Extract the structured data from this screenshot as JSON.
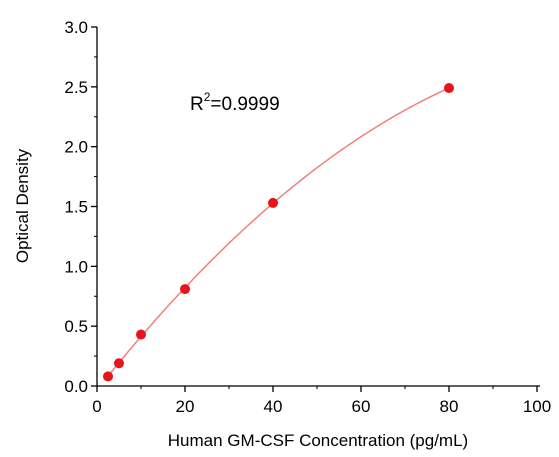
{
  "chart_data": {
    "type": "scatter",
    "xlabel": "Human GM-CSF Concentration (pg/mL)",
    "ylabel": "Optical Density",
    "xlim": [
      0,
      100
    ],
    "ylim": [
      0,
      3.0
    ],
    "x_ticks": [
      "0",
      "20",
      "40",
      "60",
      "80",
      "100"
    ],
    "y_ticks": [
      "0.0",
      "0.5",
      "1.0",
      "1.5",
      "2.0",
      "2.5",
      "3.0"
    ],
    "grid": false,
    "series": [
      {
        "x": [
          2.5,
          5,
          10,
          20,
          40,
          80
        ],
        "y": [
          0.08,
          0.19,
          0.43,
          0.81,
          1.53,
          2.49
        ],
        "marker_color": "#e8141c"
      }
    ],
    "fit_curve": {
      "type": "polynomial",
      "line_color": "#f08080"
    },
    "annotation": {
      "base": "R",
      "superscript": "2",
      "value": "=0.9999"
    }
  }
}
